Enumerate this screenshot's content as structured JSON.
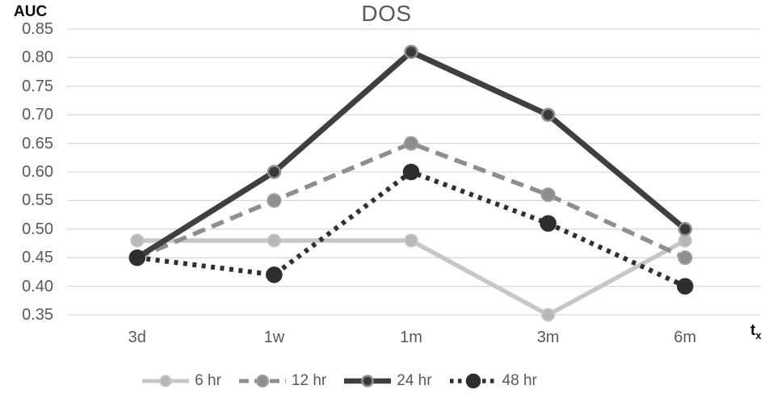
{
  "chart_data": {
    "type": "line",
    "title": "DOS",
    "ylabel": "AUC",
    "xlabel": "t",
    "xlabel_sub": "x",
    "categories": [
      "3d",
      "1w",
      "1m",
      "3m",
      "6m"
    ],
    "ylim": [
      0.35,
      0.85
    ],
    "y_ticks": [
      0.85,
      0.8,
      0.75,
      0.7,
      0.65,
      0.6,
      0.55,
      0.5,
      0.45,
      0.4,
      0.35
    ],
    "y_tick_labels": [
      "0.85",
      "0.80",
      "0.75",
      "0.70",
      "0.65",
      "0.60",
      "0.55",
      "0.50",
      "0.45",
      "0.40",
      "0.35"
    ],
    "grid": true,
    "legend_position": "bottom",
    "series": [
      {
        "name": "6 hr",
        "values": [
          0.48,
          0.48,
          0.48,
          0.35,
          0.48
        ],
        "line_style": "solid",
        "color": "#c7c7c7",
        "marker_fill": "#b7b7b7",
        "marker_stroke": "#c3c3c3"
      },
      {
        "name": "12 hr",
        "values": [
          0.45,
          0.55,
          0.65,
          0.56,
          0.45
        ],
        "line_style": "dashed",
        "color": "#8e8e8e",
        "marker_fill": "#8e8e8e",
        "marker_stroke": "#9c9c9c"
      },
      {
        "name": "24 hr",
        "values": [
          0.45,
          0.6,
          0.81,
          0.7,
          0.5
        ],
        "line_style": "solid",
        "color": "#3f3f3f",
        "marker_fill": "#3a3a3a",
        "marker_stroke": "#8e8e8e"
      },
      {
        "name": "48 hr",
        "values": [
          0.45,
          0.42,
          0.6,
          0.51,
          0.4
        ],
        "line_style": "dotted",
        "color": "#303030",
        "marker_fill": "#2e2e2e",
        "marker_stroke": "#2e2e2e"
      }
    ],
    "colors": {
      "gridline": "#d9d9d9",
      "tick_text": "#595959",
      "title_text": "#595959",
      "axis_label_text": "#0a0a0a",
      "background": "#ffffff"
    }
  }
}
